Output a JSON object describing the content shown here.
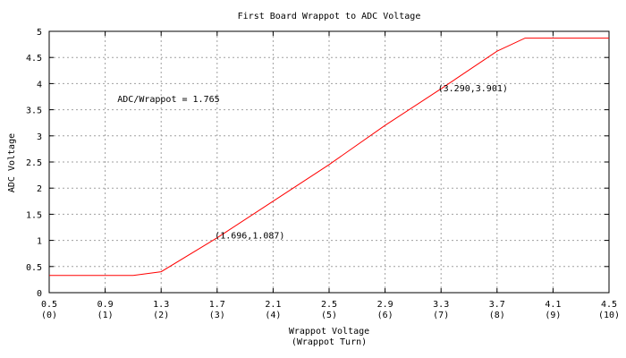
{
  "chart_data": {
    "type": "line",
    "title": "First Board Wrappot to ADC Voltage",
    "xlabel": "Wrappot Voltage",
    "xlabel2": "(Wrappot Turn)",
    "ylabel": "ADC Voltage",
    "xlim": [
      0.5,
      4.5
    ],
    "ylim": [
      0,
      5
    ],
    "grid": true,
    "x_ticks": [
      {
        "value": 0.5,
        "label": "0.5",
        "sub": "(0)"
      },
      {
        "value": 0.9,
        "label": "0.9",
        "sub": "(1)"
      },
      {
        "value": 1.3,
        "label": "1.3",
        "sub": "(2)"
      },
      {
        "value": 1.7,
        "label": "1.7",
        "sub": "(3)"
      },
      {
        "value": 2.1,
        "label": "2.1",
        "sub": "(4)"
      },
      {
        "value": 2.5,
        "label": "2.5",
        "sub": "(5)"
      },
      {
        "value": 2.9,
        "label": "2.9",
        "sub": "(6)"
      },
      {
        "value": 3.3,
        "label": "3.3",
        "sub": "(7)"
      },
      {
        "value": 3.7,
        "label": "3.7",
        "sub": "(8)"
      },
      {
        "value": 4.1,
        "label": "4.1",
        "sub": "(9)"
      },
      {
        "value": 4.5,
        "label": "4.5",
        "sub": "(10)"
      }
    ],
    "y_ticks": [
      {
        "value": 0,
        "label": "0"
      },
      {
        "value": 0.5,
        "label": "0.5"
      },
      {
        "value": 1,
        "label": "1"
      },
      {
        "value": 1.5,
        "label": "1.5"
      },
      {
        "value": 2,
        "label": "2"
      },
      {
        "value": 2.5,
        "label": "2.5"
      },
      {
        "value": 3,
        "label": "3"
      },
      {
        "value": 3.5,
        "label": "3.5"
      },
      {
        "value": 4,
        "label": "4"
      },
      {
        "value": 4.5,
        "label": "4.5"
      },
      {
        "value": 5,
        "label": "5"
      }
    ],
    "series": [
      {
        "color": "#ff0000",
        "x": [
          0.5,
          1.1,
          1.3,
          1.7,
          2.1,
          2.5,
          2.9,
          3.3,
          3.7,
          3.9,
          4.5
        ],
        "y": [
          0.33,
          0.33,
          0.4,
          1.05,
          1.75,
          2.45,
          3.2,
          3.9,
          4.62,
          4.87,
          4.87
        ]
      }
    ],
    "annotations": [
      {
        "text": "ADC/Wrappot = 1.765",
        "x": 1.0,
        "y": 3.7,
        "anchor": "start"
      },
      {
        "text": "(1.696,1.087)",
        "x": 1.696,
        "y": 1.087,
        "anchor": "start"
      },
      {
        "text": "(3.290,3.901)",
        "x": 3.29,
        "y": 3.901,
        "anchor": "start"
      }
    ]
  }
}
